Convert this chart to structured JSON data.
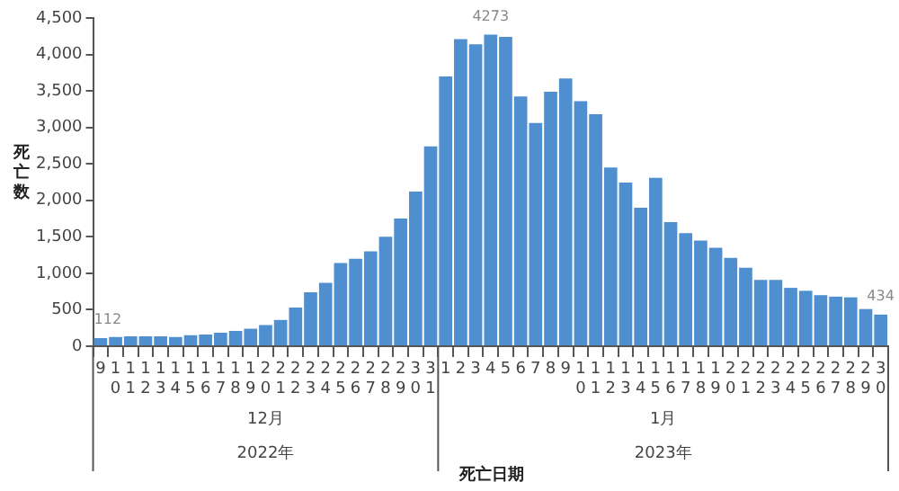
{
  "chart_data": {
    "type": "bar",
    "xlabel": "死亡日期",
    "ylabel": "死亡数",
    "categories": [
      "9",
      "10",
      "11",
      "12",
      "13",
      "14",
      "15",
      "16",
      "17",
      "18",
      "19",
      "20",
      "21",
      "22",
      "23",
      "24",
      "25",
      "26",
      "27",
      "28",
      "29",
      "30",
      "31",
      "1",
      "2",
      "3",
      "4",
      "5",
      "6",
      "7",
      "8",
      "9",
      "10",
      "11",
      "12",
      "13",
      "14",
      "15",
      "16",
      "17",
      "18",
      "19",
      "20",
      "21",
      "22",
      "23",
      "24",
      "25",
      "26",
      "27",
      "28",
      "29",
      "30"
    ],
    "values": [
      112,
      125,
      135,
      135,
      135,
      125,
      150,
      160,
      185,
      210,
      240,
      290,
      360,
      530,
      740,
      870,
      1140,
      1200,
      1300,
      1500,
      1750,
      2120,
      2740,
      3700,
      4210,
      4140,
      4273,
      4240,
      3425,
      3060,
      3490,
      3670,
      3360,
      3180,
      2450,
      2245,
      1900,
      2310,
      1700,
      1550,
      1450,
      1350,
      1210,
      1075,
      910,
      910,
      800,
      760,
      700,
      680,
      670,
      510,
      434
    ],
    "value_labels": [
      "112",
      null,
      null,
      null,
      null,
      null,
      null,
      null,
      null,
      null,
      null,
      null,
      null,
      null,
      null,
      null,
      null,
      null,
      null,
      null,
      null,
      null,
      null,
      null,
      null,
      null,
      "4273",
      null,
      null,
      null,
      null,
      null,
      null,
      null,
      null,
      null,
      null,
      null,
      null,
      null,
      null,
      null,
      null,
      null,
      null,
      null,
      null,
      null,
      null,
      null,
      null,
      null,
      "434"
    ],
    "color": "#4f8fd0",
    "ylim": [
      0,
      4500
    ],
    "yticks": [
      {
        "value": 0,
        "label": "0"
      },
      {
        "value": 500,
        "label": "500"
      },
      {
        "value": 1000,
        "label": "1,000"
      },
      {
        "value": 1500,
        "label": "1,500"
      },
      {
        "value": 2000,
        "label": "2,000"
      },
      {
        "value": 2500,
        "label": "2,500"
      },
      {
        "value": 3000,
        "label": "3,000"
      },
      {
        "value": 3500,
        "label": "3,500"
      },
      {
        "value": 4000,
        "label": "4,000"
      },
      {
        "value": 4500,
        "label": "4,500"
      }
    ],
    "annotations": [
      "12月",
      "2022年",
      "1月",
      "2023年"
    ],
    "grid": false,
    "legend": false
  }
}
